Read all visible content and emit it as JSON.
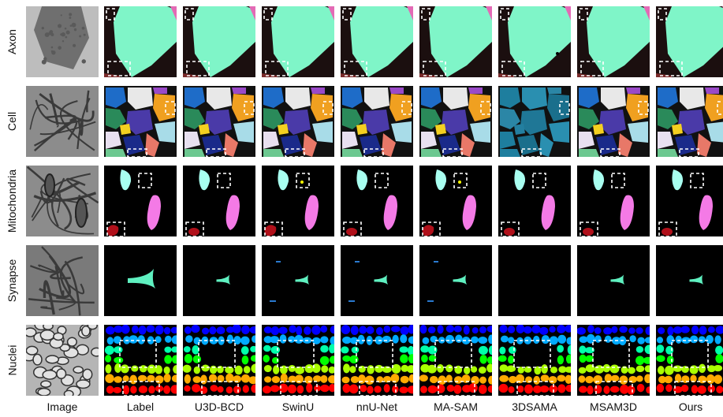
{
  "columns": [
    "Image",
    "Label",
    "U3D-BCD",
    "SwinU",
    "nnU-Net",
    "MA-SAM",
    "3DSAMA",
    "MSAM3D",
    "Ours"
  ],
  "rows": [
    "Axon",
    "Cell",
    "Mitochondria",
    "Synapse",
    "Nuclei"
  ]
}
